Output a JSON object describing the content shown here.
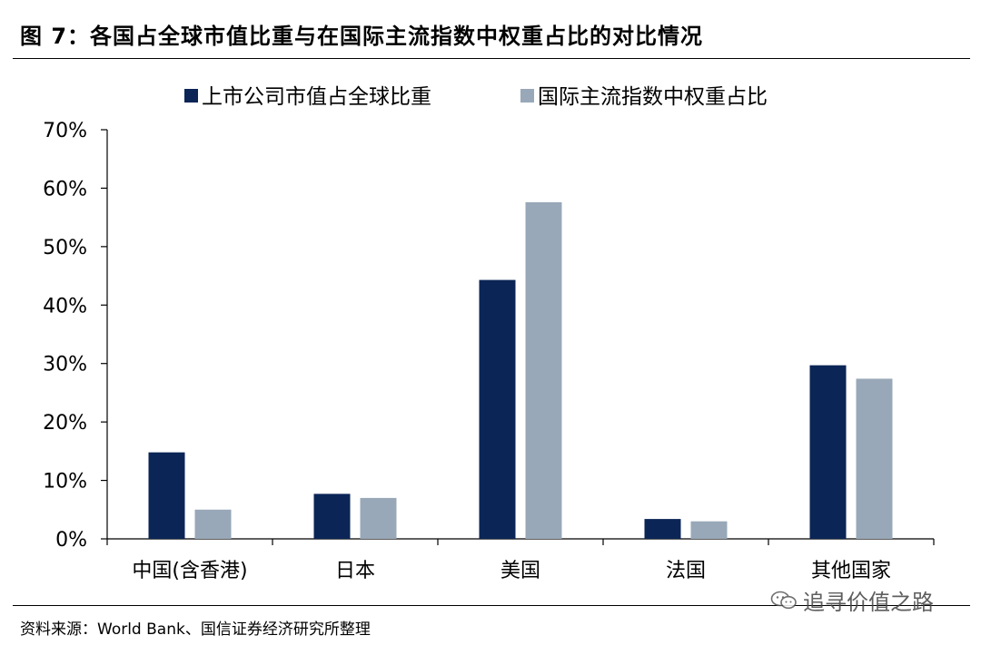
{
  "figure_title": "图 7：各国占全球市值比重与在国际主流指数中权重占比的对比情况",
  "source_note": "资料来源：World Bank、国信证券经济研究所整理",
  "watermark": "追寻价值之路",
  "chart_data": {
    "type": "bar",
    "categories": [
      "中国(含香港)",
      "日本",
      "美国",
      "法国",
      "其他国家"
    ],
    "series": [
      {
        "name": "上市公司市值占全球比重",
        "color": "#0b2556",
        "values": [
          14.8,
          7.7,
          44.3,
          3.4,
          29.7
        ]
      },
      {
        "name": "国际主流指数中权重占比",
        "color": "#98a8b8",
        "values": [
          5.0,
          7.0,
          57.6,
          3.0,
          27.4
        ]
      }
    ],
    "ylim": [
      0,
      70
    ],
    "yticks": [
      0,
      10,
      20,
      30,
      40,
      50,
      60,
      70
    ],
    "ytick_suffix": "%",
    "legend_position": "top",
    "grid": false
  }
}
